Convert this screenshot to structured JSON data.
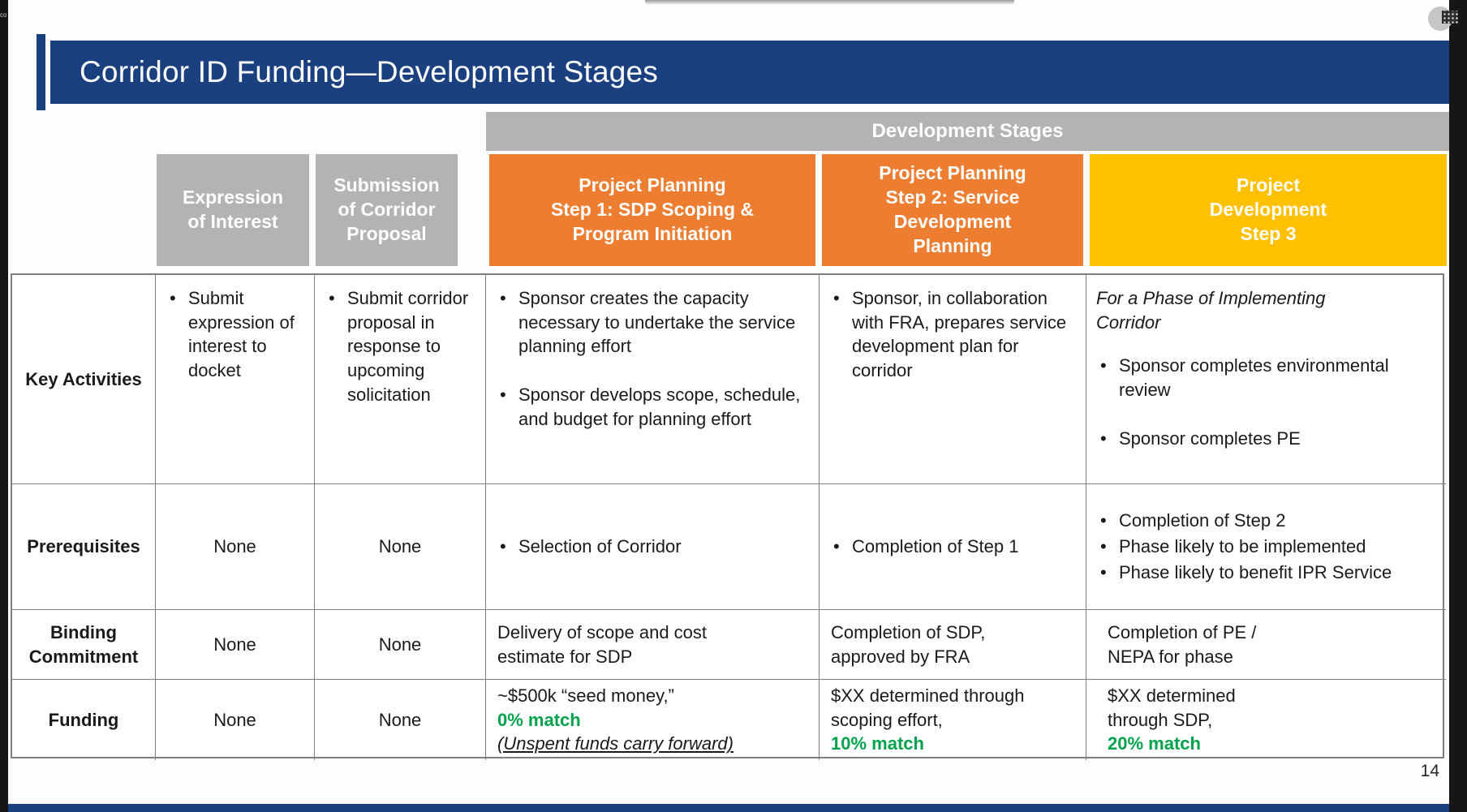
{
  "window": {
    "left_edge_text": "co",
    "page_number": "14"
  },
  "colors": {
    "navy": "#1B4080",
    "header_gray": "#B3B3B3",
    "orange": "#ED7D31",
    "gold": "#FFC000",
    "green_match": "#00A24C"
  },
  "icons": {
    "top_right": "grip-dots-icon"
  },
  "slide": {
    "title": "Corridor ID Funding—Development Stages",
    "stage_banner": "Development Stages",
    "column_headers": [
      {
        "label": "Expression\nof Interest"
      },
      {
        "label": "Submission\nof Corridor\nProposal"
      },
      {
        "label": "Project Planning\nStep 1: SDP Scoping &\nProgram Initiation"
      },
      {
        "label": "Project Planning\nStep 2: Service\nDevelopment\nPlanning"
      },
      {
        "label": "Project\nDevelopment\nStep 3"
      }
    ],
    "rows": {
      "key_activities": {
        "label": "Key Activities",
        "eoi_bullets": [
          "Submit expression of interest to docket"
        ],
        "submission_bullets": [
          "Submit corridor proposal in response to upcoming solicitation"
        ],
        "step1_bullets": [
          "Sponsor creates the capacity necessary to undertake the service planning effort",
          "Sponsor develops scope, schedule, and budget for planning effort"
        ],
        "step2_bullets": [
          "Sponsor, in collaboration with FRA, prepares service development plan for corridor"
        ],
        "step3_intro": "For a Phase of Implementing\nCorridor",
        "step3_bullets": [
          "Sponsor completes environmental review",
          "Sponsor completes PE"
        ]
      },
      "prerequisites": {
        "label": "Prerequisites",
        "eoi": "None",
        "submission": "None",
        "step1_bullets": [
          "Selection of Corridor"
        ],
        "step2_bullets": [
          "Completion of Step 1"
        ],
        "step3_bullets": [
          "Completion of Step 2",
          "Phase likely to be implemented",
          "Phase likely to benefit IPR Service"
        ]
      },
      "binding_commitment": {
        "label": "Binding\nCommitment",
        "eoi": "None",
        "submission": "None",
        "step1": "Delivery of scope and cost\nestimate for SDP",
        "step2": "Completion of SDP,\napproved by FRA",
        "step3": "Completion of PE /\nNEPA for phase"
      },
      "funding": {
        "label": "Funding",
        "eoi": "None",
        "submission": "None",
        "step1_amount": "~$500k “seed money,”",
        "step1_match": "0% match",
        "step1_note": "(Unspent funds carry forward)",
        "step2_amount": "$XX determined through scoping effort,",
        "step2_match": "10% match",
        "step3_amount": "$XX determined\nthrough SDP,",
        "step3_match": "20% match"
      }
    }
  }
}
